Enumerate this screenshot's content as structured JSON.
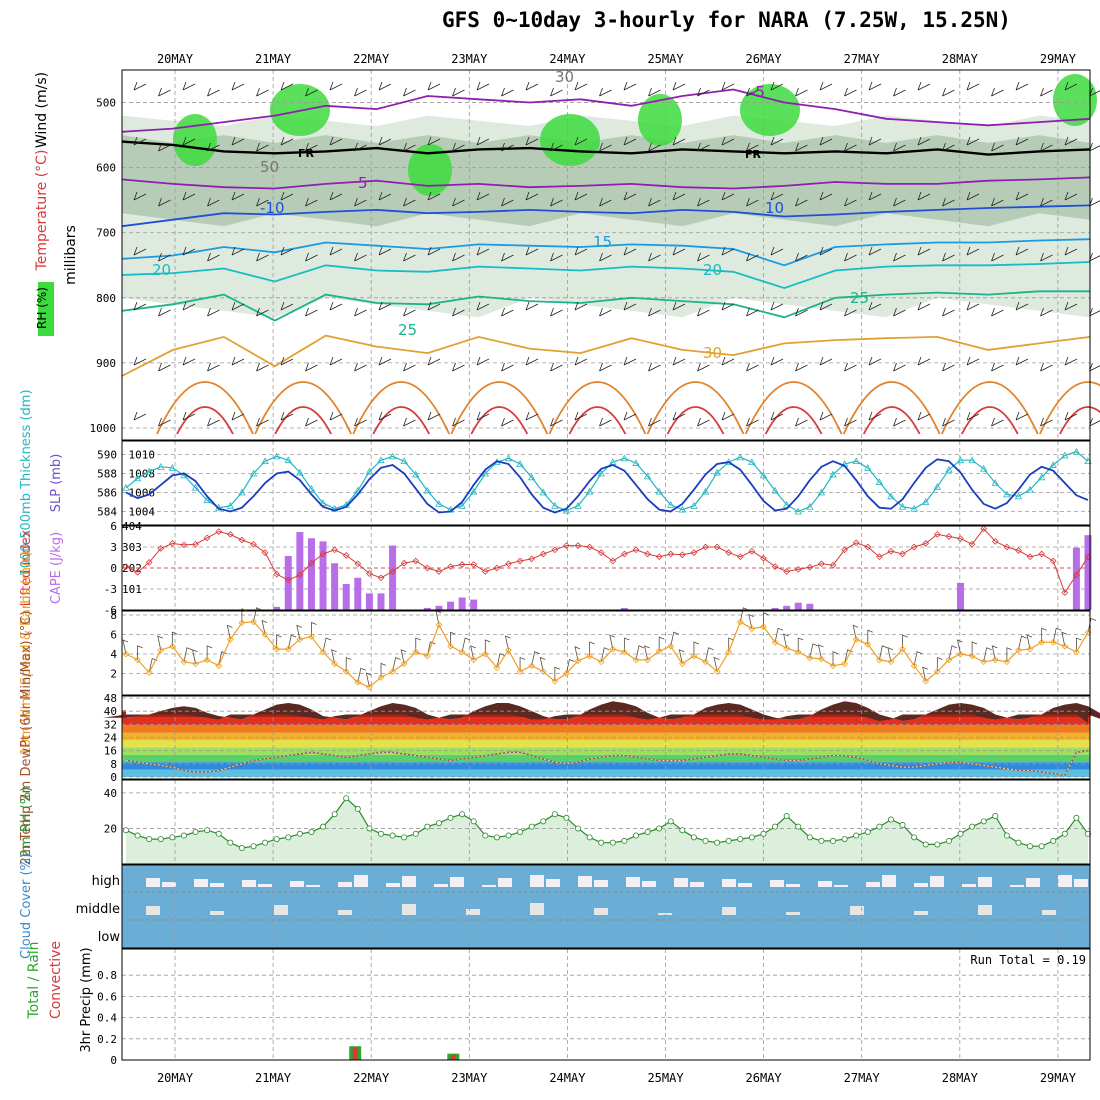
{
  "title": "GFS 0~10day 3-hourly for NARA (7.25W, 15.25N)",
  "chart_data": [
    {
      "type": "heatmap",
      "panel": "upper-air",
      "dates": [
        "20MAY",
        "21MAY",
        "22MAY",
        "23MAY",
        "24MAY",
        "25MAY",
        "26MAY",
        "27MAY",
        "28MAY",
        "29MAY"
      ],
      "xlim_days": [
        -0.5,
        9.3
      ],
      "ylabel": "millibars",
      "legend_labels": [
        "Wind (m/s)",
        "Temperature (°C)",
        "RH (%)"
      ],
      "pressure_ticks": [
        500,
        600,
        700,
        800,
        900,
        1000
      ],
      "ylim": [
        450,
        1000
      ],
      "contour_labels": [
        "-5",
        "FR",
        "5",
        "-10",
        "10",
        "15",
        "20",
        "25",
        "30",
        "50",
        "30"
      ],
      "isotherms": [
        {
          "name": "-5",
          "color": "#8f1fb0",
          "p": [
            545,
            540,
            530,
            520,
            505,
            510,
            490,
            495,
            500,
            495,
            505,
            490,
            480,
            500,
            510,
            525,
            530,
            535,
            530,
            525
          ]
        },
        {
          "name": "FR",
          "color": "#000000",
          "p": [
            560,
            565,
            575,
            578,
            575,
            570,
            578,
            572,
            570,
            575,
            578,
            572,
            575,
            578,
            575,
            578,
            572,
            580,
            575,
            572
          ]
        },
        {
          "name": "5",
          "color": "#8f1fb0",
          "p": [
            618,
            625,
            630,
            632,
            625,
            620,
            628,
            625,
            630,
            628,
            625,
            630,
            632,
            628,
            622,
            625,
            625,
            620,
            618,
            615
          ]
        },
        {
          "name": "-10",
          "color": "#1f4fd8",
          "p": [
            690,
            680,
            670,
            672,
            668,
            665,
            670,
            668,
            665,
            668,
            670,
            665,
            668,
            675,
            672,
            668,
            665,
            662,
            660,
            658
          ]
        },
        {
          "name": "15",
          "color": "#1a9ae0",
          "p": [
            740,
            735,
            722,
            730,
            715,
            720,
            725,
            718,
            720,
            722,
            718,
            720,
            725,
            750,
            722,
            718,
            715,
            715,
            712,
            710
          ]
        },
        {
          "name": "20",
          "color": "#16bcc4",
          "p": [
            765,
            762,
            755,
            775,
            750,
            758,
            760,
            752,
            755,
            758,
            752,
            755,
            760,
            785,
            758,
            752,
            750,
            750,
            748,
            745
          ]
        },
        {
          "name": "25",
          "color": "#1db38a",
          "p": [
            820,
            810,
            795,
            835,
            795,
            808,
            810,
            798,
            805,
            808,
            800,
            805,
            810,
            830,
            800,
            795,
            792,
            795,
            790,
            790
          ]
        },
        {
          "name": "30",
          "color": "#e2a030",
          "p": [
            920,
            880,
            860,
            905,
            858,
            875,
            885,
            860,
            878,
            885,
            862,
            880,
            888,
            870,
            865,
            862,
            860,
            880,
            870,
            860
          ]
        }
      ]
    },
    {
      "type": "line",
      "panel": "thickness-slp",
      "ylabel_left": "1000-500mb Thickness (dm)",
      "ylabel_right": "SLP (mb)",
      "ylim_left": [
        583,
        591
      ],
      "ylim_right": [
        1003,
        1011
      ],
      "ticks_left": [
        584,
        586,
        588,
        590
      ],
      "ticks_right": [
        1004,
        1006,
        1008,
        1010
      ],
      "series": [
        {
          "name": "1000-500mb Thickness (dm)",
          "color": "#23b7c4",
          "axis": "left",
          "values": [
            586.5,
            587.5,
            588.2,
            588.7,
            588.6,
            587.8,
            586.5,
            585.2,
            584.4,
            584.6,
            586.0,
            588.0,
            589.3,
            589.8,
            589.4,
            588.1,
            586.4,
            584.9,
            584.3,
            584.7,
            586.2,
            588.2,
            589.4,
            589.8,
            589.3,
            587.9,
            586.2,
            584.8,
            584.2,
            584.6,
            586.1,
            588.0,
            589.2,
            589.6,
            589.0,
            587.6,
            586.0,
            584.6,
            584.1,
            584.6,
            586.1,
            588.0,
            589.2,
            589.6,
            589.1,
            587.7,
            586.1,
            584.7,
            584.2,
            584.6,
            586.1,
            588.1,
            589.2,
            589.7,
            589.2,
            587.8,
            586.2,
            584.7,
            584.0,
            584.5,
            586.0,
            587.9,
            589.0,
            589.3,
            588.6,
            587.1,
            585.6,
            584.5,
            584.3,
            585.0,
            586.6,
            588.4,
            589.4,
            589.4,
            588.5,
            587.0,
            585.8,
            585.6,
            586.3,
            587.6,
            588.9,
            589.9,
            590.3,
            589.3
          ]
        },
        {
          "name": "SLP (mb)",
          "color": "#1a3dbf",
          "axis": "right",
          "values": [
            1006.0,
            1005.4,
            1005.8,
            1006.8,
            1007.8,
            1008.0,
            1007.2,
            1005.6,
            1004.3,
            1004.0,
            1004.4,
            1005.6,
            1007.0,
            1008.0,
            1008.2,
            1007.3,
            1005.8,
            1004.5,
            1004.1,
            1004.5,
            1005.8,
            1007.4,
            1008.6,
            1008.9,
            1008.0,
            1006.4,
            1004.8,
            1003.9,
            1004.0,
            1005.0,
            1006.8,
            1008.4,
            1009.3,
            1009.0,
            1007.6,
            1005.8,
            1004.4,
            1003.9,
            1004.3,
            1005.6,
            1007.2,
            1008.5,
            1008.9,
            1008.3,
            1006.8,
            1005.3,
            1004.2,
            1004.0,
            1004.8,
            1006.3,
            1007.9,
            1009.0,
            1009.2,
            1008.4,
            1006.8,
            1005.1,
            1004.1,
            1004.3,
            1005.6,
            1007.3,
            1008.7,
            1009.3,
            1008.8,
            1007.3,
            1005.6,
            1004.4,
            1004.3,
            1005.3,
            1007.0,
            1008.6,
            1009.5,
            1009.3,
            1008.1,
            1006.3,
            1004.8,
            1004.3,
            1004.9,
            1006.3,
            1007.9,
            1008.7,
            1008.3,
            1007.0,
            1005.7,
            1005.2
          ]
        }
      ]
    },
    {
      "type": "bar",
      "panel": "stability",
      "ylabel_left": "Lifted Index",
      "ylabel_right": "CAPE (J/kg)",
      "ticks_left": [
        "-6",
        "-3",
        "0",
        "3",
        "6"
      ],
      "ticks_right": [
        "404",
        "303",
        "202",
        "101"
      ],
      "ylim_left": [
        6,
        -6
      ],
      "ylim_right": [
        0,
        404
      ],
      "series": [
        {
          "name": "CAPE (J/kg)",
          "color": "#b86ee8",
          "values": [
            0,
            0,
            0,
            0,
            0,
            0,
            0,
            0,
            0,
            0,
            0,
            0,
            0,
            15,
            260,
            375,
            345,
            330,
            225,
            125,
            155,
            80,
            80,
            310,
            0,
            0,
            10,
            20,
            40,
            60,
            50,
            0,
            0,
            0,
            0,
            0,
            0,
            0,
            0,
            0,
            0,
            0,
            0,
            10,
            0,
            0,
            0,
            0,
            0,
            0,
            0,
            0,
            0,
            0,
            0,
            0,
            10,
            20,
            35,
            30,
            0,
            0,
            0,
            0,
            0,
            0,
            0,
            0,
            0,
            0,
            0,
            0,
            130,
            0,
            0,
            0,
            0,
            0,
            0,
            0,
            0,
            0,
            300,
            360
          ]
        },
        {
          "name": "Lifted Index",
          "color": "#d83a3a",
          "values": [
            0.2,
            -0.6,
            0.8,
            2.8,
            3.5,
            3.3,
            3.4,
            4.3,
            5.2,
            4.8,
            4.0,
            3.4,
            2.2,
            -0.9,
            -1.7,
            -1.0,
            0.7,
            2.0,
            2.6,
            1.8,
            0.6,
            -0.8,
            -1.4,
            -0.5,
            0.7,
            1.0,
            0.0,
            -0.5,
            0.2,
            0.5,
            0.5,
            -0.5,
            0.0,
            0.6,
            1.0,
            1.3,
            2.0,
            2.6,
            3.2,
            3.2,
            3.0,
            2.2,
            1.0,
            2.0,
            2.6,
            2.0,
            1.6,
            2.0,
            1.9,
            2.2,
            3.0,
            3.0,
            2.2,
            1.6,
            2.4,
            1.4,
            0.2,
            -0.5,
            -0.2,
            0.1,
            0.6,
            0.4,
            2.6,
            3.6,
            3.0,
            1.6,
            2.4,
            2.0,
            3.0,
            3.5,
            4.8,
            4.5,
            4.2,
            3.4,
            5.6,
            3.8,
            3.0,
            2.5,
            1.6,
            2.0,
            1.0,
            -3.5,
            -1.0,
            1.6
          ]
        }
      ]
    },
    {
      "type": "line",
      "panel": "wind10m",
      "ylabel": "10m Wind Speed & Barbs (m/s)",
      "ylim": [
        0,
        8
      ],
      "ticks": [
        2,
        4,
        6,
        8
      ],
      "series": [
        {
          "name": "10m Wind Speed",
          "color": "#f0a020",
          "values": [
            4.0,
            3.4,
            2.1,
            4.4,
            4.8,
            3.2,
            3.0,
            3.4,
            2.8,
            5.5,
            7.2,
            7.3,
            6.0,
            4.5,
            4.5,
            5.5,
            5.8,
            4.2,
            3.0,
            2.2,
            1.1,
            0.6,
            1.6,
            2.2,
            3.0,
            4.2,
            3.8,
            7.0,
            4.8,
            4.2,
            3.4,
            4.0,
            2.6,
            4.4,
            2.2,
            2.8,
            2.2,
            1.2,
            2.0,
            3.3,
            3.8,
            3.2,
            4.5,
            4.2,
            3.4,
            3.4,
            4.3,
            4.8,
            3.0,
            3.8,
            3.2,
            2.2,
            4.2,
            7.3,
            6.6,
            6.8,
            5.2,
            4.6,
            4.2,
            3.6,
            3.5,
            2.8,
            3.0,
            5.5,
            5.0,
            3.4,
            3.2,
            4.5,
            2.8,
            1.2,
            2.2,
            3.4,
            4.0,
            3.8,
            3.2,
            3.4,
            3.2,
            4.4,
            4.5,
            5.2,
            5.2,
            4.8,
            4.2,
            6.2
          ]
        }
      ]
    },
    {
      "type": "area",
      "panel": "temp2m",
      "ylabel": "2m Temp 2m DewPt (6hr Min/Max) (°C)",
      "ylim": [
        0,
        48
      ],
      "ticks": [
        0,
        8,
        16,
        24,
        32,
        40,
        48
      ],
      "series": [
        {
          "name": "2m Temp",
          "color": "#6a3a32",
          "values": [
            36,
            37,
            38,
            40,
            42,
            43,
            42,
            39,
            37,
            36,
            35,
            38,
            41,
            44,
            45,
            44,
            41,
            37,
            36,
            35,
            37,
            40,
            43,
            45,
            44,
            42,
            38,
            36,
            35,
            36,
            40,
            43,
            45,
            45,
            43,
            40,
            37,
            35,
            35,
            37,
            41,
            44,
            46,
            45,
            43,
            39,
            36,
            35,
            36,
            38,
            42,
            44,
            45,
            44,
            41,
            38,
            36,
            35,
            35,
            37,
            41,
            44,
            46,
            45,
            42,
            38,
            36,
            34,
            35,
            38,
            41,
            44,
            45,
            44,
            42,
            38,
            36,
            35,
            36,
            38,
            42,
            44,
            45,
            43,
            39,
            33
          ]
        },
        {
          "name": "2m DewPt",
          "color": "#8b5a3c",
          "values": [
            10,
            9,
            8,
            7,
            6,
            4,
            3,
            3,
            4,
            6,
            8,
            10,
            11,
            12,
            13,
            14,
            15,
            14,
            13,
            12,
            13,
            14,
            15,
            15,
            14,
            13,
            12,
            11,
            10,
            11,
            12,
            13,
            14,
            15,
            15,
            13,
            11,
            9,
            8,
            9,
            11,
            12,
            13,
            13,
            12,
            11,
            10,
            10,
            10,
            11,
            12,
            13,
            14,
            14,
            13,
            12,
            11,
            10,
            10,
            11,
            12,
            13,
            13,
            12,
            10,
            8,
            7,
            6,
            6,
            7,
            8,
            9,
            9,
            8,
            7,
            6,
            5,
            4,
            4,
            3,
            2,
            1,
            15,
            16
          ]
        }
      ]
    },
    {
      "type": "area",
      "panel": "rh2m",
      "ylabel": "2m RH (%)",
      "ylim": [
        0,
        45
      ],
      "ticks": [
        20,
        40
      ],
      "series": [
        {
          "name": "2m RH",
          "color": "#2e8a2e",
          "values": [
            19,
            16,
            14,
            14,
            15,
            16,
            18,
            19,
            17,
            12,
            9,
            10,
            12,
            14,
            15,
            17,
            18,
            21,
            28,
            37,
            31,
            20,
            17,
            16,
            15,
            17,
            21,
            23,
            26,
            28,
            24,
            16,
            15,
            16,
            18,
            21,
            24,
            28,
            26,
            20,
            15,
            12,
            12,
            13,
            16,
            18,
            20,
            24,
            19,
            15,
            13,
            12,
            13,
            14,
            15,
            17,
            21,
            27,
            21,
            15,
            13,
            13,
            14,
            16,
            18,
            21,
            25,
            22,
            15,
            11,
            11,
            13,
            17,
            21,
            24,
            27,
            16,
            12,
            10,
            10,
            13,
            17,
            26,
            17
          ]
        }
      ]
    },
    {
      "type": "bar",
      "panel": "cloud",
      "ylabel": "Cloud Cover (%)",
      "levels": [
        "high",
        "middle",
        "low"
      ]
    },
    {
      "type": "bar",
      "panel": "precip",
      "ylabel": "3hr Precip (mm)",
      "legend_labels": [
        "Total / Rain",
        "Convective"
      ],
      "ylim": [
        0,
        1.0
      ],
      "ticks": [
        "0",
        "0.2",
        "0.4",
        "0.6",
        "0.8"
      ],
      "annotation": "Run Total = 0.19",
      "series": [
        {
          "name": "Total / Rain",
          "color": "#2da82d",
          "values": [
            {
              "x": "22MAY",
              "v": 0.13
            },
            {
              "x": "23MAY",
              "v": 0.06
            }
          ]
        },
        {
          "name": "Convective",
          "color": "#d83a3a",
          "values": [
            {
              "x": "22MAY",
              "v": 0.12
            },
            {
              "x": "23MAY",
              "v": 0.05
            }
          ]
        }
      ]
    }
  ]
}
